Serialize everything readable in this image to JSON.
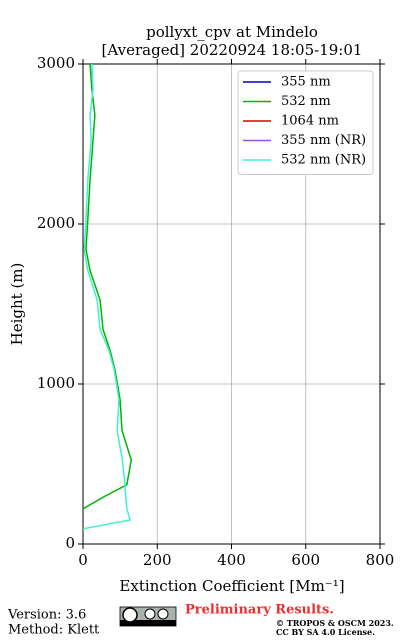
{
  "chart_data": {
    "type": "line",
    "title": "pollyxt_cpv at Mindelo",
    "subtitle": "[Averaged] 20220924 18:05-19:01",
    "x_label": "Extinction Coefficient [Mm⁻¹]",
    "y_label": "Height (m)",
    "y": [
      95,
      150,
      220,
      300,
      370,
      525,
      710,
      900,
      1090,
      1210,
      1340,
      1525,
      1710,
      1840,
      2030,
      2275,
      2525,
      2680,
      2840,
      3000
    ],
    "series": [
      {
        "name": "355 nm",
        "color": "#0000cc",
        "values": [
          null,
          null,
          null,
          null,
          null,
          null,
          null,
          null,
          null,
          null,
          null,
          null,
          null,
          null,
          null,
          null,
          null,
          null,
          null,
          null
        ]
      },
      {
        "name": "532 nm",
        "color": "#00b400",
        "values": [
          null,
          null,
          0,
          60,
          118,
          130,
          105,
          100,
          86,
          73,
          54,
          46,
          19,
          8,
          13,
          19,
          27,
          32,
          24,
          19
        ]
      },
      {
        "name": "1064 nm",
        "color": "#e00000",
        "values": [
          null,
          null,
          null,
          null,
          null,
          null,
          null,
          null,
          null,
          null,
          null,
          null,
          null,
          null,
          null,
          null,
          null,
          null,
          null,
          null
        ]
      },
      {
        "name": "355 nm (NR)",
        "color": "#9b4fe0",
        "values": [
          null,
          null,
          null,
          null,
          null,
          null,
          null,
          null,
          null,
          null,
          null,
          null,
          null,
          null,
          null,
          null,
          null,
          null,
          null,
          null
        ]
      },
      {
        "name": "532 nm (NR)",
        "color": "#40f0d0",
        "values": [
          0,
          127,
          118,
          115,
          113,
          106,
          92,
          97,
          84,
          70,
          46,
          38,
          13,
          3,
          8,
          13,
          22,
          19,
          27,
          24
        ]
      }
    ],
    "xlim": [
      0,
      800
    ],
    "xticks": [
      0,
      200,
      400,
      600,
      800
    ],
    "ylim": [
      0,
      3000
    ],
    "yticks": [
      0,
      1000,
      2000,
      3000
    ],
    "grid": true,
    "legend": "upper right",
    "footer": {
      "version": "Version: 3.6",
      "method": "Method: Klett",
      "preliminary": "Preliminary Results.",
      "copyright": "© TROPOS & OSCM 2023.",
      "license": "CC BY SA 4.0 License."
    }
  }
}
